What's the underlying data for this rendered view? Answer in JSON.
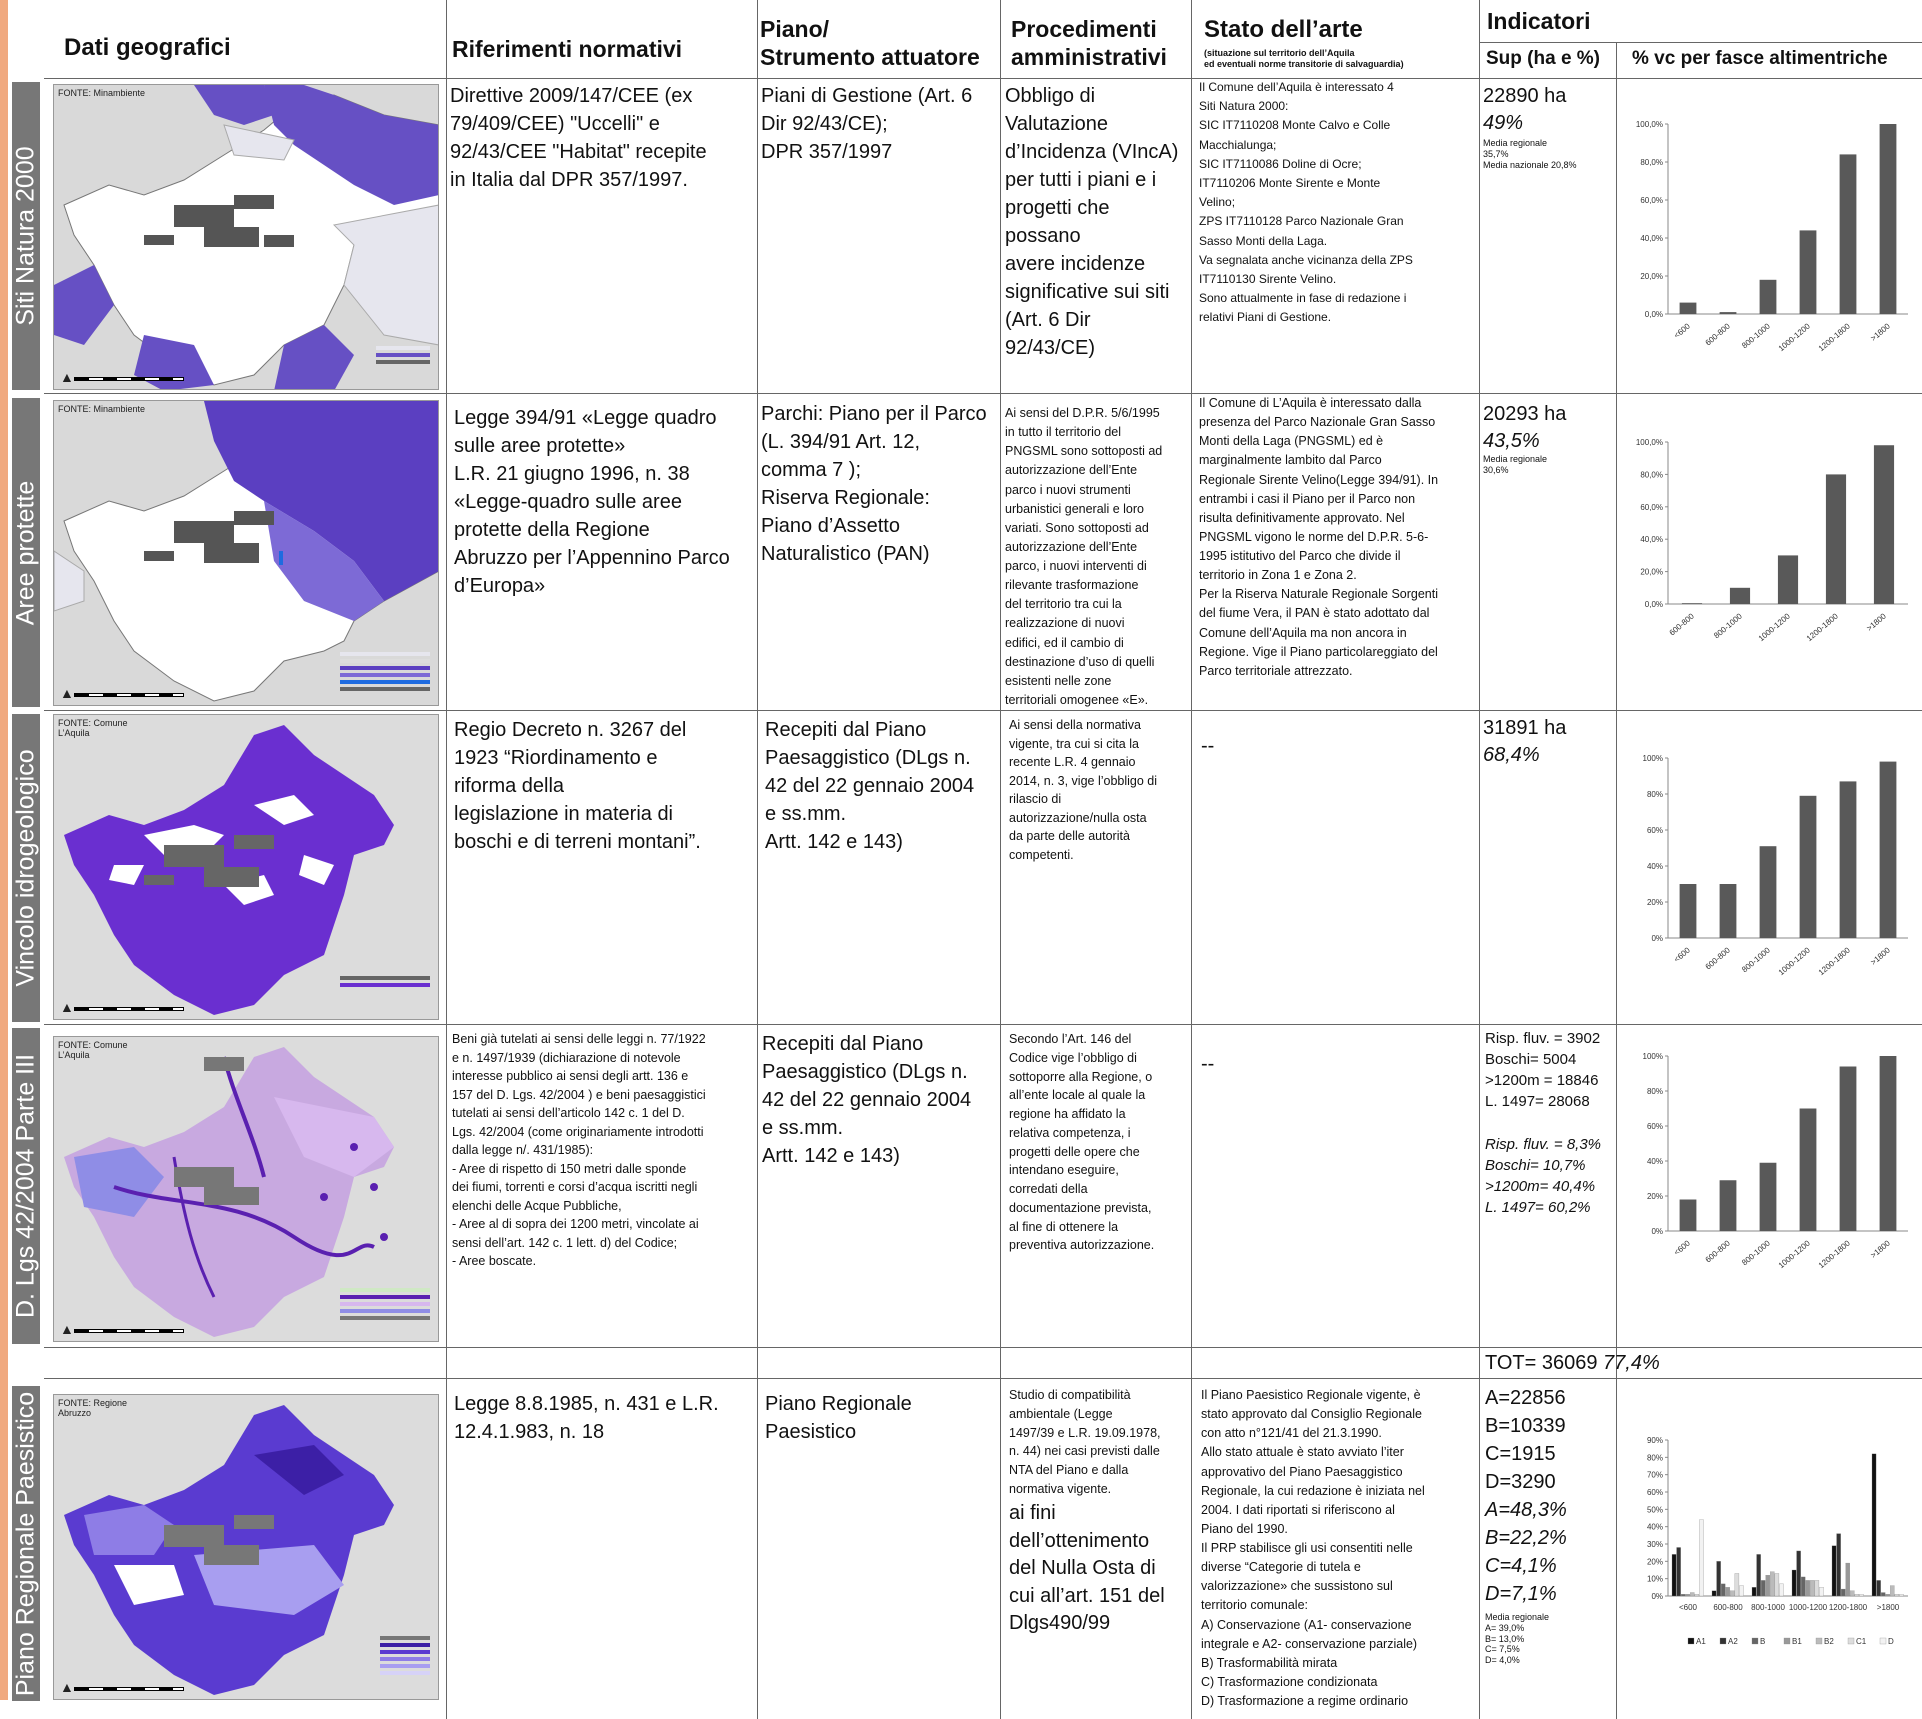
{
  "header": {
    "col_dati": "Dati geografici",
    "col_riferimenti": "Riferimenti normativi",
    "col_piano": "Piano/\nStrumento attuatore",
    "col_procedimenti": "Procedimenti\namministrativi",
    "col_stato": "Stato dell’arte",
    "col_stato_sub": "(situazione sul territorio dell’Aquila\ned eventuali norme transitorie di salvaguardia)",
    "col_indicatori": "Indicatori",
    "col_sup": "Sup (ha e %)",
    "col_vc": "% vc per fasce altimentriche"
  },
  "rows": [
    {
      "label": "Siti Natura 2000",
      "fonte": "FONTE: Minambiente",
      "riferimenti": "Direttive 2009/147/CEE (ex\n79/409/CEE) \"Uccelli\" e\n92/43/CEE \"Habitat\" recepite\nin Italia dal DPR 357/1997.",
      "piano": "Piani di Gestione (Art. 6\nDir 92/43/CE);\nDPR 357/1997",
      "procedimenti": "Obbligo di\nValutazione\nd’Incidenza (VIncA)\nper tutti i piani e i\nprogetti che\npossano\navere incidenze\nsignificative sui siti\n(Art. 6 Dir\n92/43/CE)",
      "stato": "Il Comune dell’Aquila è interessato 4\nSiti Natura 2000:\nSIC IT7110208 Monte Calvo e Colle\nMacchialunga;\nSIC IT7110086 Doline di Ocre;\nIT7110206 Monte Sirente e Monte\nVelino;\nZPS IT7110128 Parco Nazionale Gran\nSasso Monti della Laga.\nVa segnalata anche vicinanza della ZPS\nIT7110130 Sirente Velino.\nSono attualmente in fase di redazione i\nrelativi Piani di Gestione.",
      "sup_ha": "22890 ha",
      "sup_pct": "49%",
      "media": "Media regionale\n35,7%\nMedia nazionale 20,8%"
    },
    {
      "label": "Aree protette",
      "fonte": "FONTE: Minambiente",
      "riferimenti": "Legge 394/91 «Legge quadro\nsulle aree protette»\nL.R. 21 giugno 1996, n. 38\n«Legge-quadro sulle aree\nprotette della Regione\nAbruzzo per l’Appennino Parco\nd’Europa»",
      "piano": "Parchi: Piano per il Parco\n(L. 394/91 Art. 12,\ncomma 7 );\nRiserva Regionale:\nPiano d’Assetto\nNaturalistico (PAN)",
      "procedimenti": "Ai sensi del D.P.R. 5/6/1995\nin tutto il territorio del\nPNGSML sono sottoposti ad\nautorizzazione dell’Ente\nparco i nuovi strumenti\nurbanistici generali e loro\nvariati. Sono sottoposti ad\nautorizzazione dell’Ente\nparco, i nuovi interventi di\nrilevante trasformazione\ndel territorio tra cui la\nrealizzazione di nuovi\nedifici, ed il cambio di\ndestinazione d’uso di quelli\nesistenti nelle zone\nterritoriali omogenee «E».",
      "stato": "Il Comune di L’Aquila è interessato dalla\npresenza del Parco Nazionale Gran Sasso\nMonti della Laga (PNGSML) ed è\nmarginalmente lambito dal Parco\nRegionale Sirente Velino(Legge 394/91). In\nentrambi i casi il Piano per il Parco non\nrisulta definitivamente approvato. Nel\nPNGSML vigono le norme del D.P.R. 5-6-\n1995 istitutivo del Parco che divide il\nterritorio in Zona 1 e Zona 2.\nPer la Riserva Naturale Regionale Sorgenti\ndel fiume Vera, il PAN è stato adottato dal\nComune dell’Aquila ma non ancora in\nRegione. Vige il Piano particolareggiato del\nParco territoriale attrezzato.",
      "sup_ha": "20293 ha",
      "sup_pct": "43,5%",
      "media": "Media regionale\n30,6%"
    },
    {
      "label": "Vincolo idrogeologico",
      "fonte": "FONTE: Comune\nL’Aquila",
      "riferimenti": "Regio Decreto n. 3267 del\n1923 “Riordinamento e\nriforma della\nlegislazione in materia di\nboschi e di terreni montani”.",
      "piano": "Recepiti dal Piano\nPaesaggistico (DLgs n.\n42 del 22 gennaio 2004\ne ss.mm.\nArtt. 142 e 143)",
      "procedimenti": "Ai sensi della normativa\nvigente, tra cui si cita la\nrecente L.R. 4 gennaio\n2014, n. 3, vige l’obbligo di\nrilascio di\nautorizzazione/nulla osta\nda parte delle autorità\ncompetenti.",
      "stato": "--",
      "sup_ha": "31891 ha",
      "sup_pct": "68,4%"
    },
    {
      "label": "D. Lgs 42/2004 Parte III",
      "fonte": "FONTE: Comune\nL’Aquila",
      "riferimenti": "Beni già tutelati ai sensi delle leggi n. 77/1922\ne n. 1497/1939 (dichiarazione di notevole\ninteresse pubblico ai sensi degli artt. 136 e\n157 del D. Lgs. 42/2004 ) e beni paesaggistici\ntutelati ai sensi dell’articolo 142 c. 1 del D.\nLgs. 42/2004 (come originariamente introdotti\ndalla legge n/. 431/1985):\n- Aree di rispetto di 150 metri dalle sponde\ndei fiumi, torrenti e corsi d’acqua iscritti negli\nelenchi delle Acque Pubbliche,\n- Aree al di sopra dei 1200 metri, vincolate ai\nsensi dell’art. 142 c. 1 lett. d) del Codice;\n- Aree boscate.",
      "piano": "Recepiti dal Piano\nPaesaggistico (DLgs n.\n42 del 22 gennaio 2004\ne ss.mm.\nArtt. 142 e 143)",
      "procedimenti": "Secondo l’Art. 146 del\nCodice vige l’obbligo di\nsottoporre alla Regione, o\nall’ente locale al quale la\nregione ha affidato la\nrelativa competenza, i\nprogetti delle opere che\nintendano eseguire,\ncorredati della\ndocumentazione prevista,\nal fine di ottenere la\npreventiva autorizzazione.",
      "stato": "--",
      "ind_values": "Risp. fluv. = 3902\nBoschi= 5004\n>1200m = 18846\nL. 1497= 28068",
      "ind_pcts": "Risp. fluv. = 8,3%\nBoschi= 10,7%\n>1200m= 40,4%\nL. 1497= 60,2%"
    },
    {
      "label": "Piano Regionale Paesistico",
      "fonte": "FONTE: Regione\nAbruzzo",
      "riferimenti": "Legge 8.8.1985, n. 431 e L.R.\n12.4.1.983, n. 18",
      "piano": "Piano Regionale\nPaesistico",
      "procedimenti_small": "Studio di compatibilità\nambientale (Legge\n1497/39 e L.R. 19.09.1978,\nn. 44) nei casi previsti dalle\nNTA del Piano e dalla\nnormativa vigente.",
      "procedimenti_big": "ai fini\ndell’ottenimento\ndel Nulla Osta di\ncui all’art. 151 del\nDlgs490/99",
      "stato": "Il Piano Paesistico Regionale vigente, è\nstato approvato dal Consiglio Regionale\ncon atto n°121/41 del 21.3.1990.\nAllo stato attuale è stato avviato l’iter\napprovativo del Piano Paesaggistico\nRegionale, la cui redazione è iniziata nel\n2004. I dati riportati si riferiscono al\nPiano del 1990.\nIl PRP stabilisce gli usi consentiti nelle\ndiverse “Categorie di tutela e\nvalorizzazione» che sussistono sul\nterritorio comunale:\nA) Conservazione (A1- conservazione\nintegrale e A2- conservazione parziale)\nB) Trasformabilità mirata\nC) Trasformazione condizionata\nD) Trasformazione a regime ordinario",
      "ind_values": "A=22856\nB=10339\nC=1915\nD=3290",
      "ind_pcts": "A=48,3%\nB=22,2%\nC=4,1%\nD=7,1%",
      "media": "Media regionale\nA= 39,0%\nB= 13,0%\nC= 7,5%\nD= 4,0%"
    }
  ],
  "tot": {
    "value": "TOT= 36069",
    "pct": "77,4%"
  },
  "chart_data": [
    {
      "type": "bar",
      "categories": [
        "<600",
        "600-800",
        "800-1000",
        "1000-1200",
        "1200-1800",
        ">1800"
      ],
      "values": [
        6,
        1,
        18,
        44,
        84,
        100
      ],
      "yticks": [
        "0,0%",
        "20,0%",
        "40,0%",
        "60,0%",
        "80,0%",
        "100,0%"
      ],
      "ylim": [
        0,
        100
      ],
      "color": "#595959"
    },
    {
      "type": "bar",
      "categories": [
        "600-800",
        "800-1000",
        "1000-1200",
        "1200-1800",
        ">1800"
      ],
      "values": [
        0.5,
        10,
        30,
        80,
        98
      ],
      "yticks": [
        "0,0%",
        "20,0%",
        "40,0%",
        "60,0%",
        "80,0%",
        "100,0%"
      ],
      "ylim": [
        0,
        100
      ],
      "color": "#595959"
    },
    {
      "type": "bar",
      "categories": [
        "<600",
        "600-800",
        "800-1000",
        "1000-1200",
        "1200-1800",
        ">1800"
      ],
      "values": [
        30,
        30,
        51,
        79,
        87,
        98
      ],
      "yticks": [
        "0%",
        "20%",
        "40%",
        "60%",
        "80%",
        "100%"
      ],
      "ylim": [
        0,
        100
      ],
      "color": "#595959"
    },
    {
      "type": "bar",
      "categories": [
        "<600",
        "600-800",
        "800-1000",
        "1000-1200",
        "1200-1800",
        ">1800"
      ],
      "values": [
        18,
        29,
        39,
        70,
        94,
        100
      ],
      "yticks": [
        "0%",
        "20%",
        "40%",
        "60%",
        "80%",
        "100%"
      ],
      "ylim": [
        0,
        100
      ],
      "color": "#595959"
    },
    {
      "type": "bar",
      "categories": [
        "<600",
        "600-800",
        "800-1000",
        "1000-1200",
        "1200-1800",
        ">1800"
      ],
      "yticks": [
        "0%",
        "10%",
        "20%",
        "30%",
        "40%",
        "50%",
        "60%",
        "70%",
        "80%",
        "90%"
      ],
      "ylim": [
        0,
        90
      ],
      "series": [
        {
          "name": "A1",
          "color": "#111111",
          "values": [
            24,
            3,
            5,
            15,
            29,
            82
          ]
        },
        {
          "name": "A2",
          "color": "#333333",
          "values": [
            28,
            20,
            24,
            26,
            36,
            9
          ]
        },
        {
          "name": "B",
          "color": "#666666",
          "values": [
            1,
            7,
            9,
            11,
            4,
            2
          ]
        },
        {
          "name": "B1",
          "color": "#999999",
          "values": [
            1,
            5,
            12,
            9,
            19,
            1
          ]
        },
        {
          "name": "B2",
          "color": "#bbbbbb",
          "values": [
            2,
            3,
            14,
            9,
            3,
            6
          ]
        },
        {
          "name": "C1",
          "color": "#dddddd",
          "values": [
            1,
            13,
            13,
            9,
            1,
            1
          ]
        },
        {
          "name": "D",
          "color": "#f2f2f2",
          "values": [
            44,
            6,
            7,
            5,
            1,
            1
          ]
        }
      ]
    }
  ],
  "colors": {
    "side_tab": "#777777",
    "accent_strip": "#f0a97f",
    "bar": "#595959",
    "violet": "#6b3fc9"
  }
}
